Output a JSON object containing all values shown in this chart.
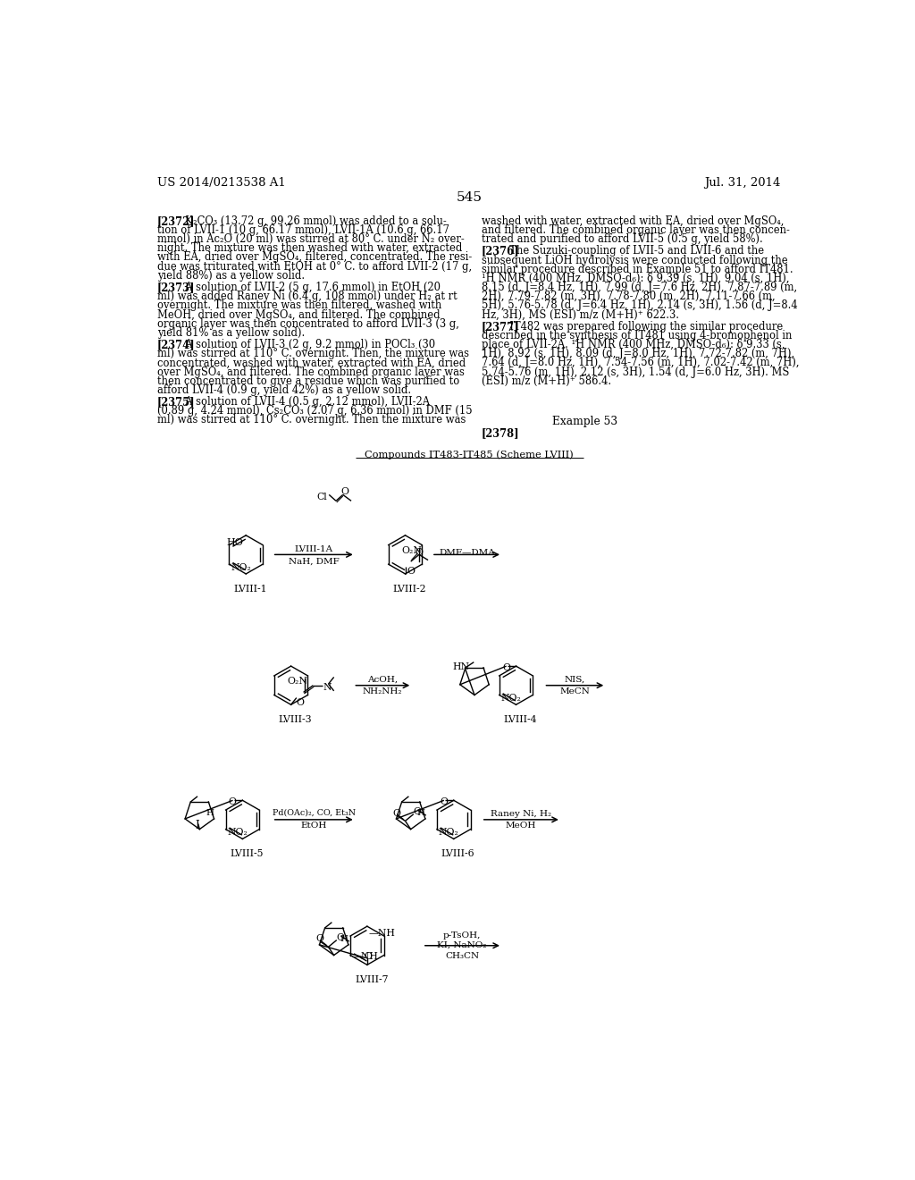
{
  "bg_color": "#ffffff",
  "page_number": "545",
  "header_left": "US 2014/0213538 A1",
  "header_right": "Jul. 31, 2014",
  "scheme_title": "Compounds IT483-IT485 (Scheme LVIII)",
  "example_label": "Example 53",
  "para_2378": "[2378]"
}
